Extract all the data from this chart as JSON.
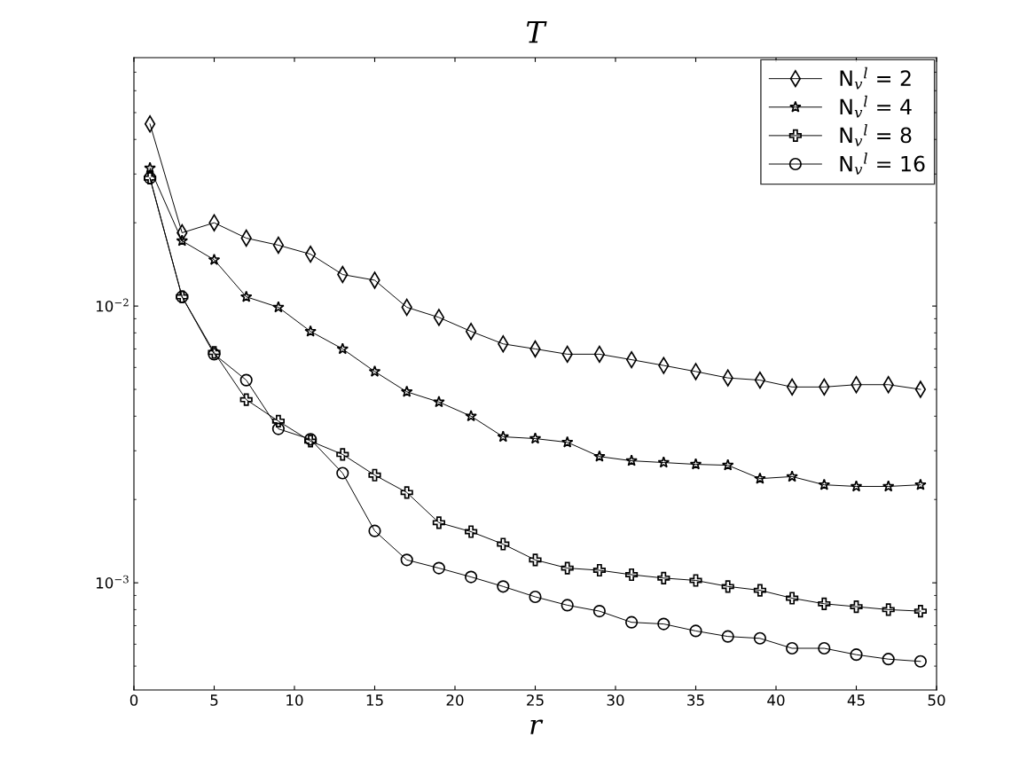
{
  "chart_data": {
    "type": "line",
    "title": "T",
    "xlabel": "r",
    "x": [
      1,
      3,
      5,
      7,
      9,
      11,
      13,
      15,
      17,
      19,
      21,
      23,
      25,
      27,
      29,
      31,
      33,
      35,
      37,
      39,
      41,
      43,
      45,
      47,
      49
    ],
    "series": [
      {
        "name": "N$_{v}$$^{l}$ = 2",
        "color": "#000000",
        "marker": "diamond",
        "values": [
          0.0455,
          0.0184,
          0.02,
          0.0176,
          0.0166,
          0.0154,
          0.013,
          0.0124,
          0.0099,
          0.0091,
          0.0081,
          0.0073,
          0.007,
          0.0067,
          0.0067,
          0.0064,
          0.0061,
          0.0058,
          0.0055,
          0.0054,
          0.0051,
          0.0051,
          0.0052,
          0.0052,
          0.005
        ]
      },
      {
        "name": "N$_{v}$$^{l}$ = 4",
        "color": "#000000",
        "marker": "star",
        "values": [
          0.0315,
          0.0172,
          0.0147,
          0.0108,
          0.0099,
          0.0081,
          0.007,
          0.0058,
          0.0049,
          0.0045,
          0.004,
          0.00337,
          0.00332,
          0.00322,
          0.00286,
          0.00276,
          0.00272,
          0.00268,
          0.00266,
          0.00238,
          0.00242,
          0.00226,
          0.00223,
          0.00223,
          0.00226
        ]
      },
      {
        "name": "N$_{v}$$^{l}$ = 8",
        "color": "#000000",
        "marker": "cross",
        "values": [
          0.029,
          0.0108,
          0.0068,
          0.00459,
          0.00384,
          0.00325,
          0.00291,
          0.00245,
          0.00212,
          0.00165,
          0.00153,
          0.00138,
          0.00121,
          0.00113,
          0.00111,
          0.00107,
          0.00104,
          0.00102,
          0.00097,
          0.00094,
          0.00088,
          0.00084,
          0.00082,
          0.0008,
          0.00079
        ]
      },
      {
        "name": "N$_{v}$$^{l}$ = 16",
        "color": "#000000",
        "marker": "circle",
        "values": [
          0.029,
          0.0108,
          0.0067,
          0.0054,
          0.0036,
          0.0033,
          0.00249,
          0.00154,
          0.00121,
          0.00113,
          0.00105,
          0.00097,
          0.00089,
          0.00083,
          0.00079,
          0.00072,
          0.00071,
          0.00067,
          0.00064,
          0.00063,
          0.00058,
          0.00058,
          0.00055,
          0.00053,
          0.00052
        ]
      }
    ],
    "log": "y",
    "xlim": [
      0,
      50
    ],
    "xticks": [
      0,
      5,
      10,
      15,
      20,
      25,
      30,
      35,
      40,
      45,
      50
    ],
    "ylim": [
      0.00041,
      0.079
    ],
    "yticks": [
      {
        "value": 0.001,
        "label": "10$^{−3}$"
      },
      {
        "value": 0.01,
        "label": "10$^{−2}$"
      }
    ],
    "grid": false,
    "legend": "top right",
    "line_style": "solid"
  }
}
